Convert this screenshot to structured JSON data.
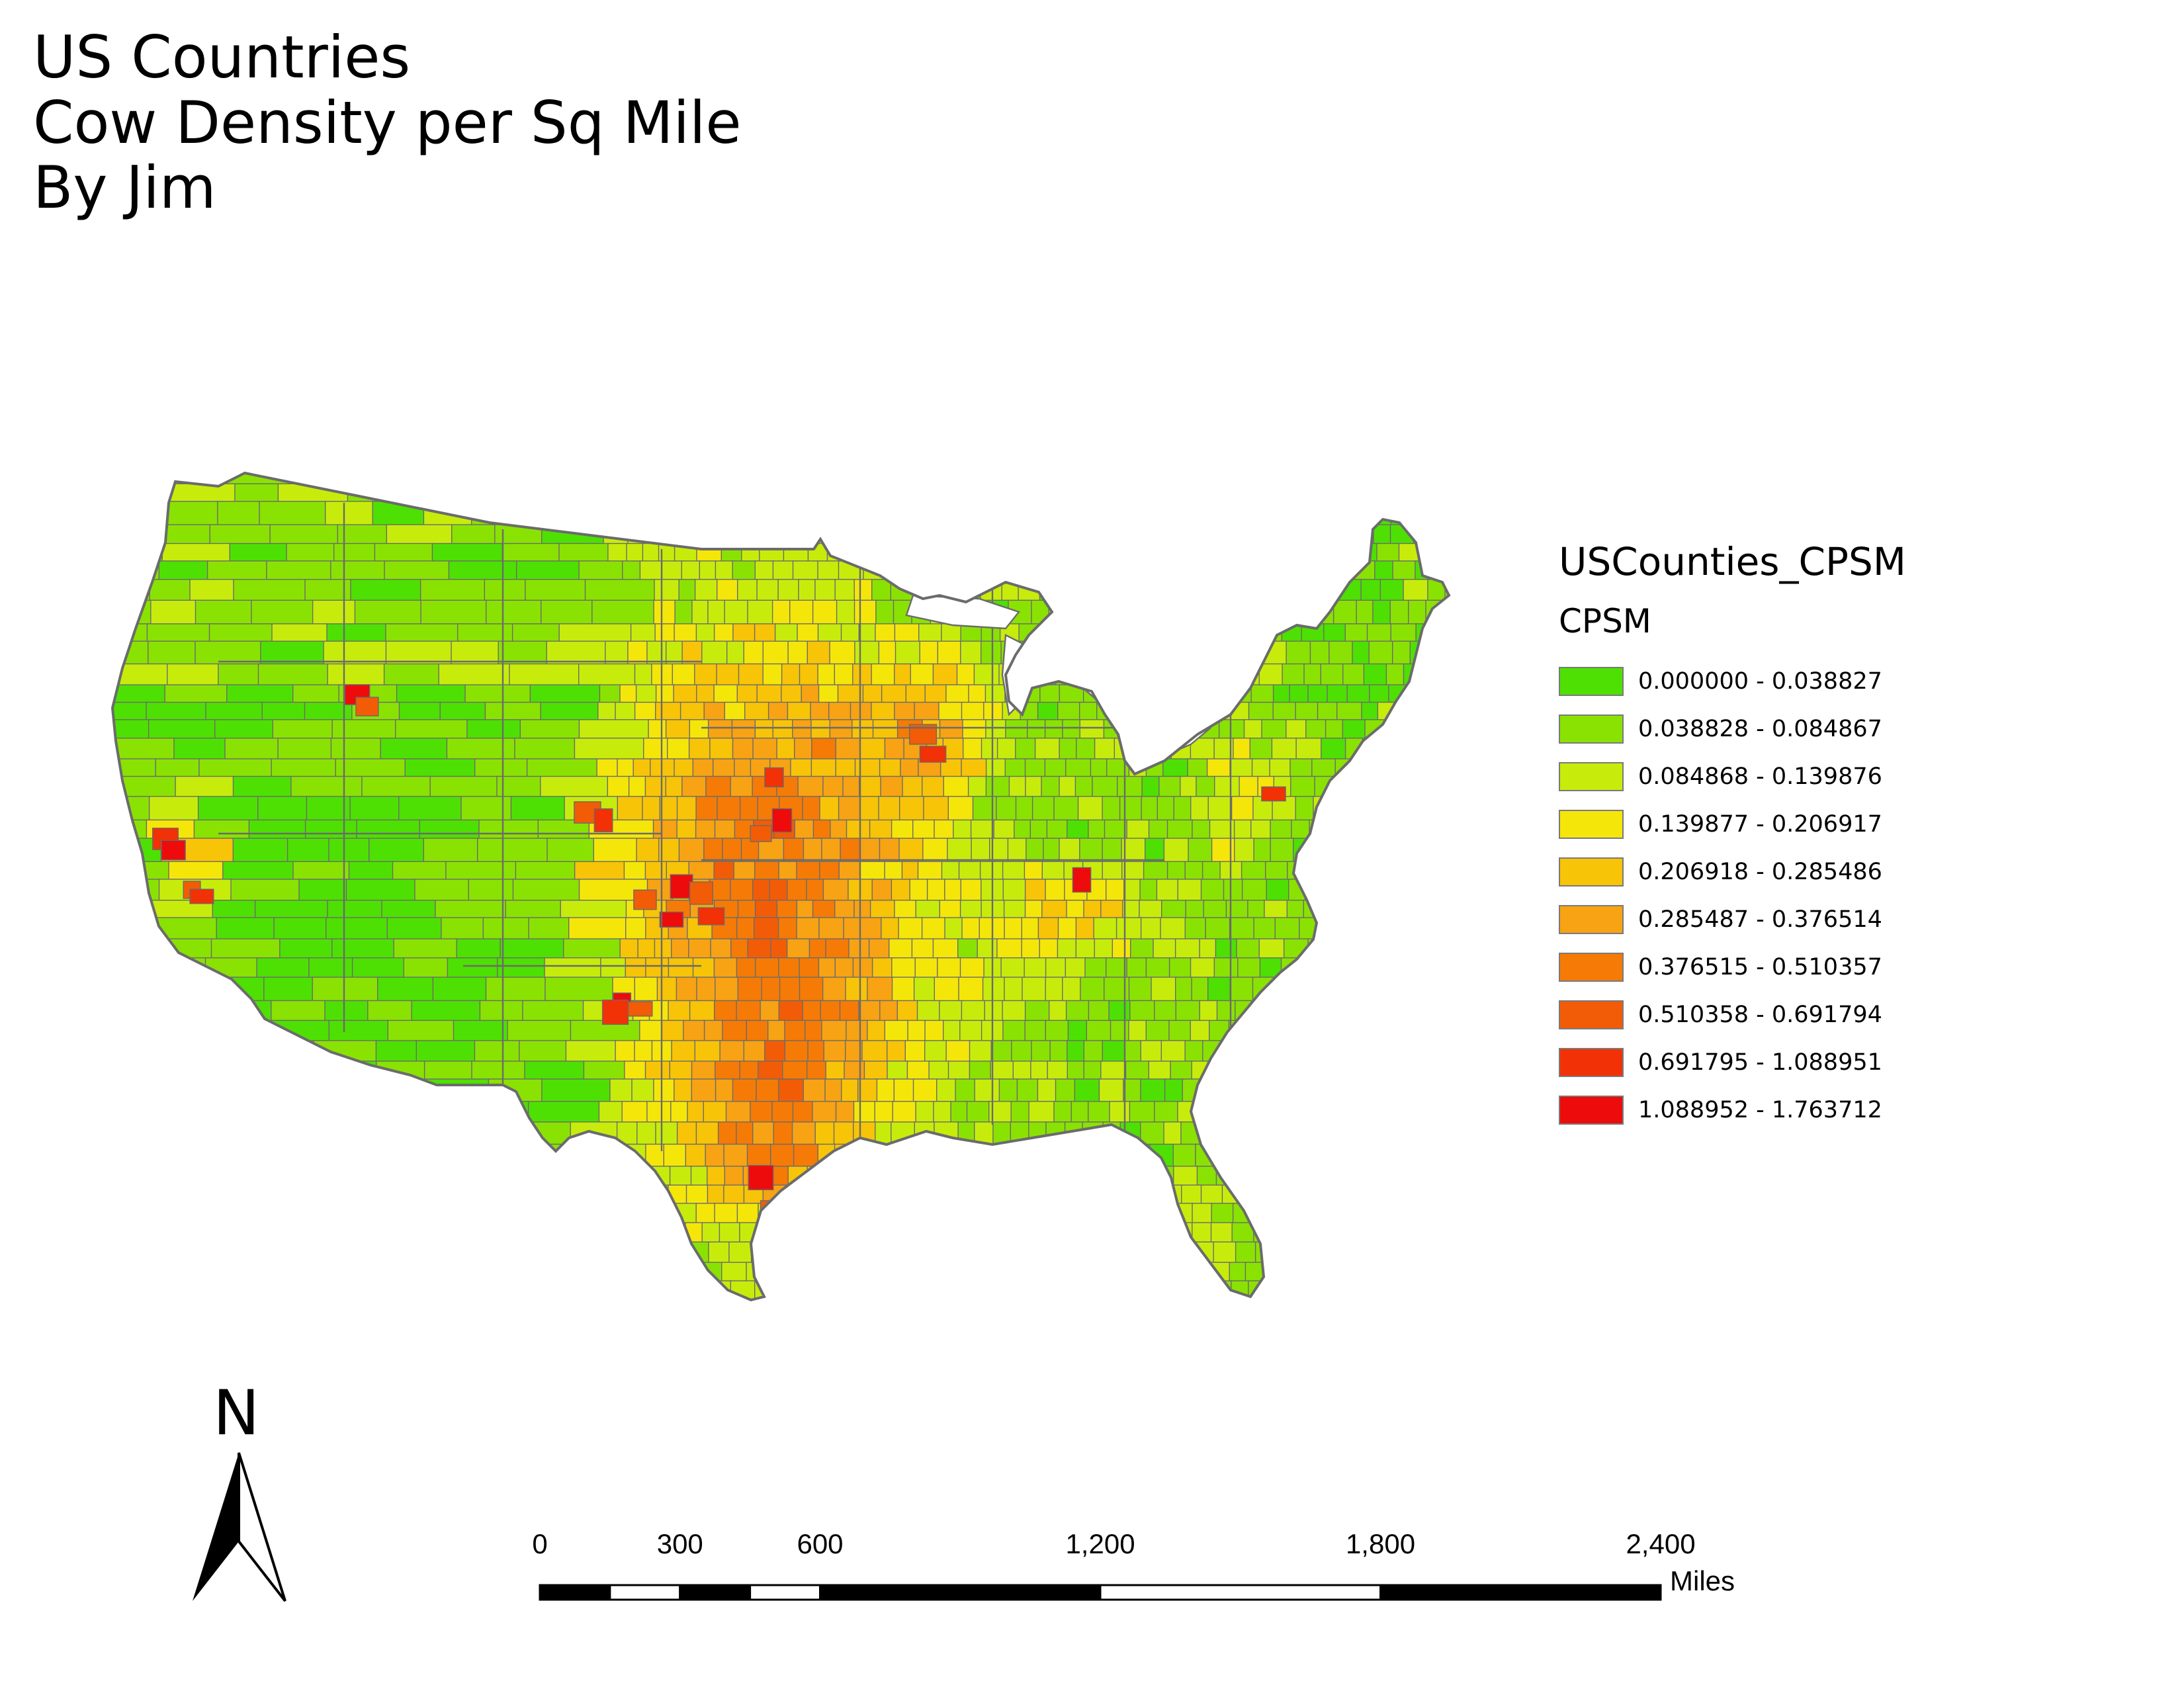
{
  "title": {
    "line1": "US Countries",
    "line2": "Cow Density per Sq Mile",
    "line3": "By Jim"
  },
  "legend": {
    "layer_name": "USCounties_CPSM",
    "field_name": "CPSM",
    "classes": [
      {
        "label": "0.000000 - 0.038827",
        "color": "#4ee003"
      },
      {
        "label": "0.038828 - 0.084867",
        "color": "#8ae203"
      },
      {
        "label": "0.084868 - 0.139876",
        "color": "#c7ec0c"
      },
      {
        "label": "0.139877 - 0.206917",
        "color": "#f5e60a"
      },
      {
        "label": "0.206918 - 0.285486",
        "color": "#f7c407"
      },
      {
        "label": "0.285487 - 0.376514",
        "color": "#f7a313"
      },
      {
        "label": "0.376515 - 0.510357",
        "color": "#f57b06"
      },
      {
        "label": "0.510358 - 0.691794",
        "color": "#f25c06"
      },
      {
        "label": "0.691795 - 1.088951",
        "color": "#f23106"
      },
      {
        "label": "1.088952 - 1.763712",
        "color": "#ee0b0b"
      }
    ]
  },
  "north_arrow": {
    "label": "N"
  },
  "scale_bar": {
    "ticks": [
      "0",
      "300",
      "600",
      "1,200",
      "1,800",
      "2,400"
    ],
    "unit": "Miles"
  },
  "map": {
    "boundary_color": "#6b6b6b",
    "background": "#ffffff"
  }
}
